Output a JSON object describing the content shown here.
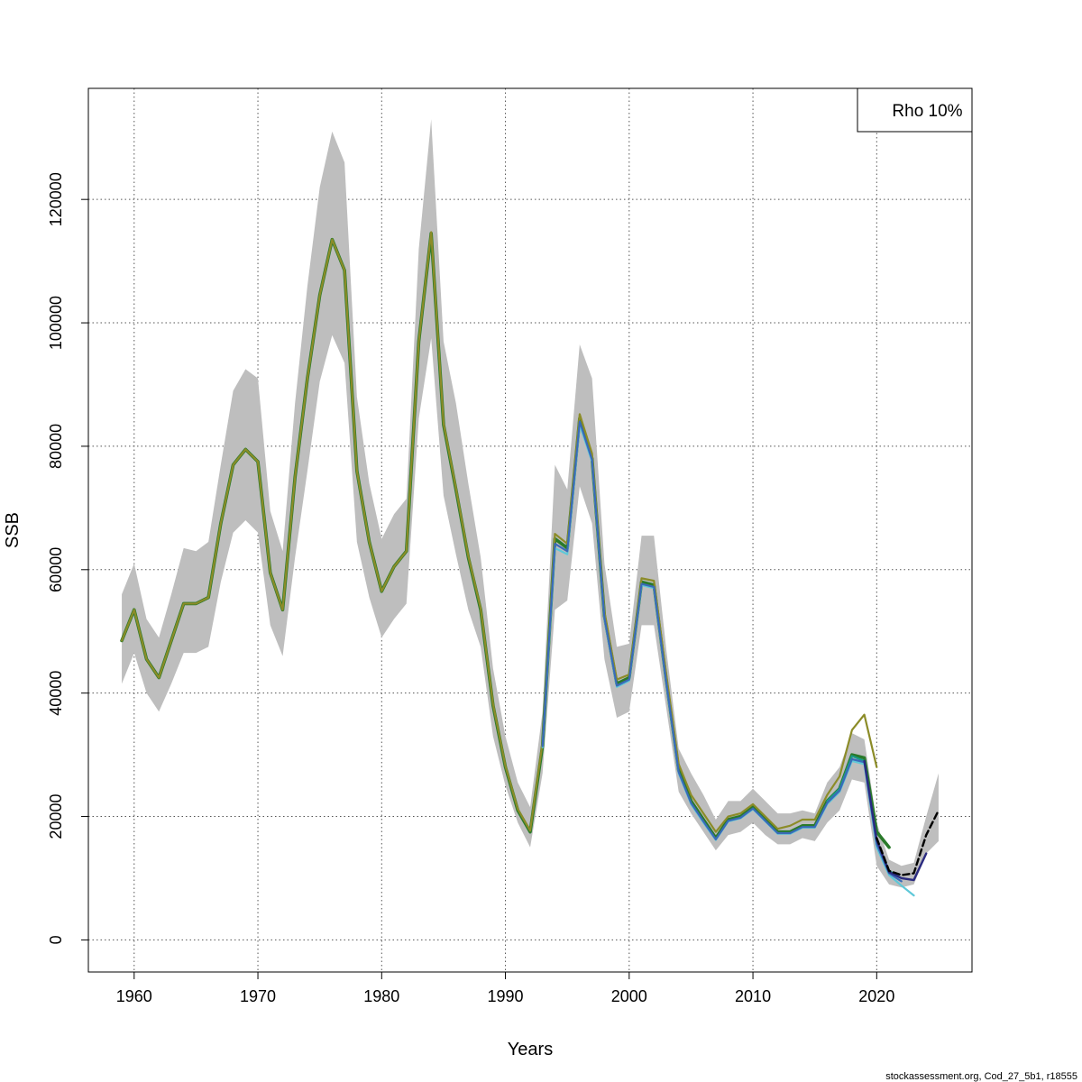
{
  "chart_data": {
    "type": "line",
    "xlabel": "Years",
    "ylabel": "SSB",
    "xlim": [
      1956.3,
      2027.7
    ],
    "ylim": [
      -5200,
      138000
    ],
    "x_ticks": [
      1960,
      1970,
      1980,
      1990,
      2000,
      2010,
      2020
    ],
    "y_ticks": [
      0,
      20000,
      40000,
      60000,
      80000,
      100000,
      120000
    ],
    "grid": true,
    "legend": {
      "placement": "top-right",
      "text": "Rho 10%"
    },
    "credit": "stockassessment.org, Cod_27_5b1, r18555",
    "colors": {
      "band": "#bebebe",
      "base": "#2a7a2a",
      "olive": "#8c8c28",
      "cyan": "#5ec8d8",
      "teal": "#1a9a8a",
      "blue": "#3a6ab8",
      "navy": "#2a2a80",
      "forecast": "#000000"
    },
    "band": {
      "x": [
        1959,
        1960,
        1961,
        1962,
        1963,
        1964,
        1965,
        1966,
        1967,
        1968,
        1969,
        1970,
        1971,
        1972,
        1973,
        1974,
        1975,
        1976,
        1977,
        1978,
        1979,
        1980,
        1981,
        1982,
        1983,
        1984,
        1985,
        1986,
        1987,
        1988,
        1989,
        1990,
        1991,
        1992,
        1993,
        1994,
        1995,
        1996,
        1997,
        1998,
        1999,
        2000,
        2001,
        2002,
        2003,
        2004,
        2005,
        2006,
        2007,
        2008,
        2009,
        2010,
        2011,
        2012,
        2013,
        2014,
        2015,
        2016,
        2017,
        2018,
        2019,
        2020,
        2021,
        2022,
        2023,
        2024,
        2025
      ],
      "upper": [
        56000,
        61000,
        52000,
        49000,
        56000,
        63500,
        63000,
        64500,
        77000,
        89000,
        92500,
        91000,
        69500,
        63000,
        87000,
        106000,
        122000,
        131000,
        126000,
        88000,
        74000,
        65000,
        69000,
        71500,
        112000,
        133000,
        97000,
        87000,
        74000,
        62000,
        44000,
        33000,
        25500,
        21500,
        37000,
        77000,
        73000,
        96500,
        91000,
        61000,
        47500,
        48000,
        65500,
        65500,
        47000,
        31000,
        27000,
        23500,
        19500,
        22500,
        22500,
        24500,
        22500,
        20500,
        20500,
        21000,
        20500,
        25500,
        28000,
        33500,
        32500,
        19000,
        13000,
        12000,
        12500,
        20000,
        27000
      ],
      "lower": [
        41500,
        46500,
        40000,
        37000,
        41500,
        46500,
        46500,
        47500,
        58000,
        66000,
        68000,
        66000,
        51000,
        46000,
        62000,
        76000,
        90500,
        98000,
        93500,
        64500,
        55500,
        49000,
        52000,
        54500,
        84500,
        97500,
        72000,
        62500,
        53500,
        47500,
        33000,
        25000,
        19000,
        15000,
        27000,
        53500,
        55000,
        73500,
        67500,
        45500,
        36000,
        37000,
        51000,
        51000,
        37500,
        24000,
        20500,
        17500,
        14500,
        17000,
        17500,
        19000,
        17000,
        15500,
        15500,
        16500,
        16000,
        19000,
        21000,
        26000,
        25500,
        12000,
        9000,
        8500,
        9000,
        14000,
        16000
      ]
    },
    "series": [
      {
        "color": "base",
        "width": 3.6,
        "dash": "",
        "x": [
          1959,
          1960,
          1961,
          1962,
          1963,
          1964,
          1965,
          1966,
          1967,
          1968,
          1969,
          1970,
          1971,
          1972,
          1973,
          1974,
          1975,
          1976,
          1977,
          1978,
          1979,
          1980,
          1981,
          1982,
          1983,
          1984,
          1985,
          1986,
          1987,
          1988,
          1989,
          1990,
          1991,
          1992,
          1993,
          1994,
          1995,
          1996,
          1997,
          1998,
          1999,
          2000,
          2001,
          2002,
          2003,
          2004,
          2005,
          2006,
          2007,
          2008,
          2009,
          2010,
          2011,
          2012,
          2013,
          2014,
          2015,
          2016,
          2017,
          2018,
          2019,
          2020,
          2021
        ],
        "y": [
          48500,
          53500,
          45500,
          42500,
          48500,
          54500,
          54500,
          55500,
          67500,
          77000,
          79500,
          77500,
          59500,
          53500,
          75000,
          91000,
          104500,
          113500,
          108500,
          76000,
          64500,
          56500,
          60500,
          63000,
          97000,
          114500,
          83500,
          73000,
          62000,
          53500,
          38000,
          28000,
          21000,
          17500,
          31500,
          65000,
          63500,
          84500,
          78000,
          52500,
          41500,
          42500,
          58000,
          57500,
          42000,
          27500,
          22500,
          19500,
          16500,
          19500,
          20000,
          21500,
          19500,
          17500,
          17500,
          18500,
          18500,
          22500,
          24500,
          30000,
          29500,
          17500,
          15000
        ]
      },
      {
        "color": "olive",
        "width": 2.2,
        "dash": "",
        "x": [
          1959,
          1960,
          1961,
          1962,
          1963,
          1964,
          1965,
          1966,
          1967,
          1968,
          1969,
          1970,
          1971,
          1972,
          1973,
          1974,
          1975,
          1976,
          1977,
          1978,
          1979,
          1980,
          1981,
          1982,
          1983,
          1984,
          1985,
          1986,
          1987,
          1988,
          1989,
          1990,
          1991,
          1992,
          1993,
          1994,
          1995,
          1996,
          1997,
          1998,
          1999,
          2000,
          2001,
          2002,
          2003,
          2004,
          2005,
          2006,
          2007,
          2008,
          2009,
          2010,
          2011,
          2012,
          2013,
          2014,
          2015,
          2016,
          2017,
          2018,
          2019,
          2020
        ],
        "y": [
          48500,
          53500,
          45500,
          42500,
          48500,
          54500,
          54500,
          55500,
          67500,
          77000,
          79500,
          77500,
          59500,
          53500,
          75000,
          91000,
          104500,
          113500,
          108500,
          76000,
          64500,
          56500,
          60500,
          63000,
          97000,
          114700,
          83700,
          73200,
          62200,
          53700,
          38200,
          28200,
          21200,
          17700,
          32000,
          65800,
          64200,
          85200,
          78800,
          53200,
          42200,
          43000,
          58600,
          58200,
          43000,
          28500,
          23500,
          20500,
          17500,
          20000,
          20500,
          22000,
          20000,
          18000,
          18500,
          19500,
          19500,
          23500,
          26500,
          34000,
          36500,
          28000
        ]
      },
      {
        "color": "teal",
        "width": 2.2,
        "dash": "",
        "x": [
          2016,
          2017,
          2018,
          2019,
          2020,
          2021,
          2022
        ],
        "y": [
          22500,
          24500,
          29800,
          29000,
          16000,
          11200,
          10000
        ]
      },
      {
        "color": "cyan",
        "width": 2.2,
        "dash": "",
        "x": [
          1993,
          1994,
          1995,
          1996,
          1997,
          1998,
          1999,
          2000,
          2001,
          2002,
          2003,
          2004,
          2005,
          2006,
          2007,
          2008,
          2009,
          2010,
          2011,
          2012,
          2013,
          2014,
          2015,
          2016,
          2017,
          2018,
          2019,
          2020,
          2021,
          2022,
          2023
        ],
        "y": [
          31200,
          63500,
          62500,
          83500,
          77500,
          52000,
          41000,
          42000,
          57500,
          57000,
          41500,
          27000,
          22000,
          19000,
          16200,
          19200,
          19700,
          21200,
          19200,
          17200,
          17200,
          18200,
          18200,
          22000,
          24000,
          29000,
          28500,
          15000,
          10500,
          8800,
          7200
        ]
      },
      {
        "color": "blue",
        "width": 2.2,
        "dash": "",
        "x": [
          1993,
          1994,
          1995,
          1996,
          1997,
          1998,
          1999,
          2000,
          2001,
          2002,
          2003,
          2004,
          2005,
          2006,
          2007,
          2008,
          2009,
          2010,
          2011,
          2012,
          2013,
          2014,
          2015,
          2016,
          2017,
          2018,
          2019,
          2020,
          2021,
          2022
        ],
        "y": [
          31400,
          64200,
          63000,
          84000,
          77800,
          52200,
          41200,
          42200,
          57700,
          57200,
          41700,
          27200,
          22200,
          19200,
          16300,
          19300,
          19800,
          21300,
          19300,
          17300,
          17300,
          18300,
          18300,
          22200,
          24200,
          29300,
          28800,
          15500,
          10800,
          9500
        ]
      },
      {
        "color": "navy",
        "width": 2.4,
        "dash": "",
        "x": [
          2019,
          2020,
          2021,
          2022,
          2023,
          2024
        ],
        "y": [
          29000,
          16200,
          11000,
          10000,
          9700,
          14000
        ]
      },
      {
        "color": "forecast",
        "width": 2.4,
        "dash": "7 4",
        "x": [
          2020,
          2021,
          2022,
          2023,
          2024,
          2025
        ],
        "y": [
          16500,
          11200,
          10500,
          10800,
          17000,
          21000
        ]
      }
    ]
  }
}
